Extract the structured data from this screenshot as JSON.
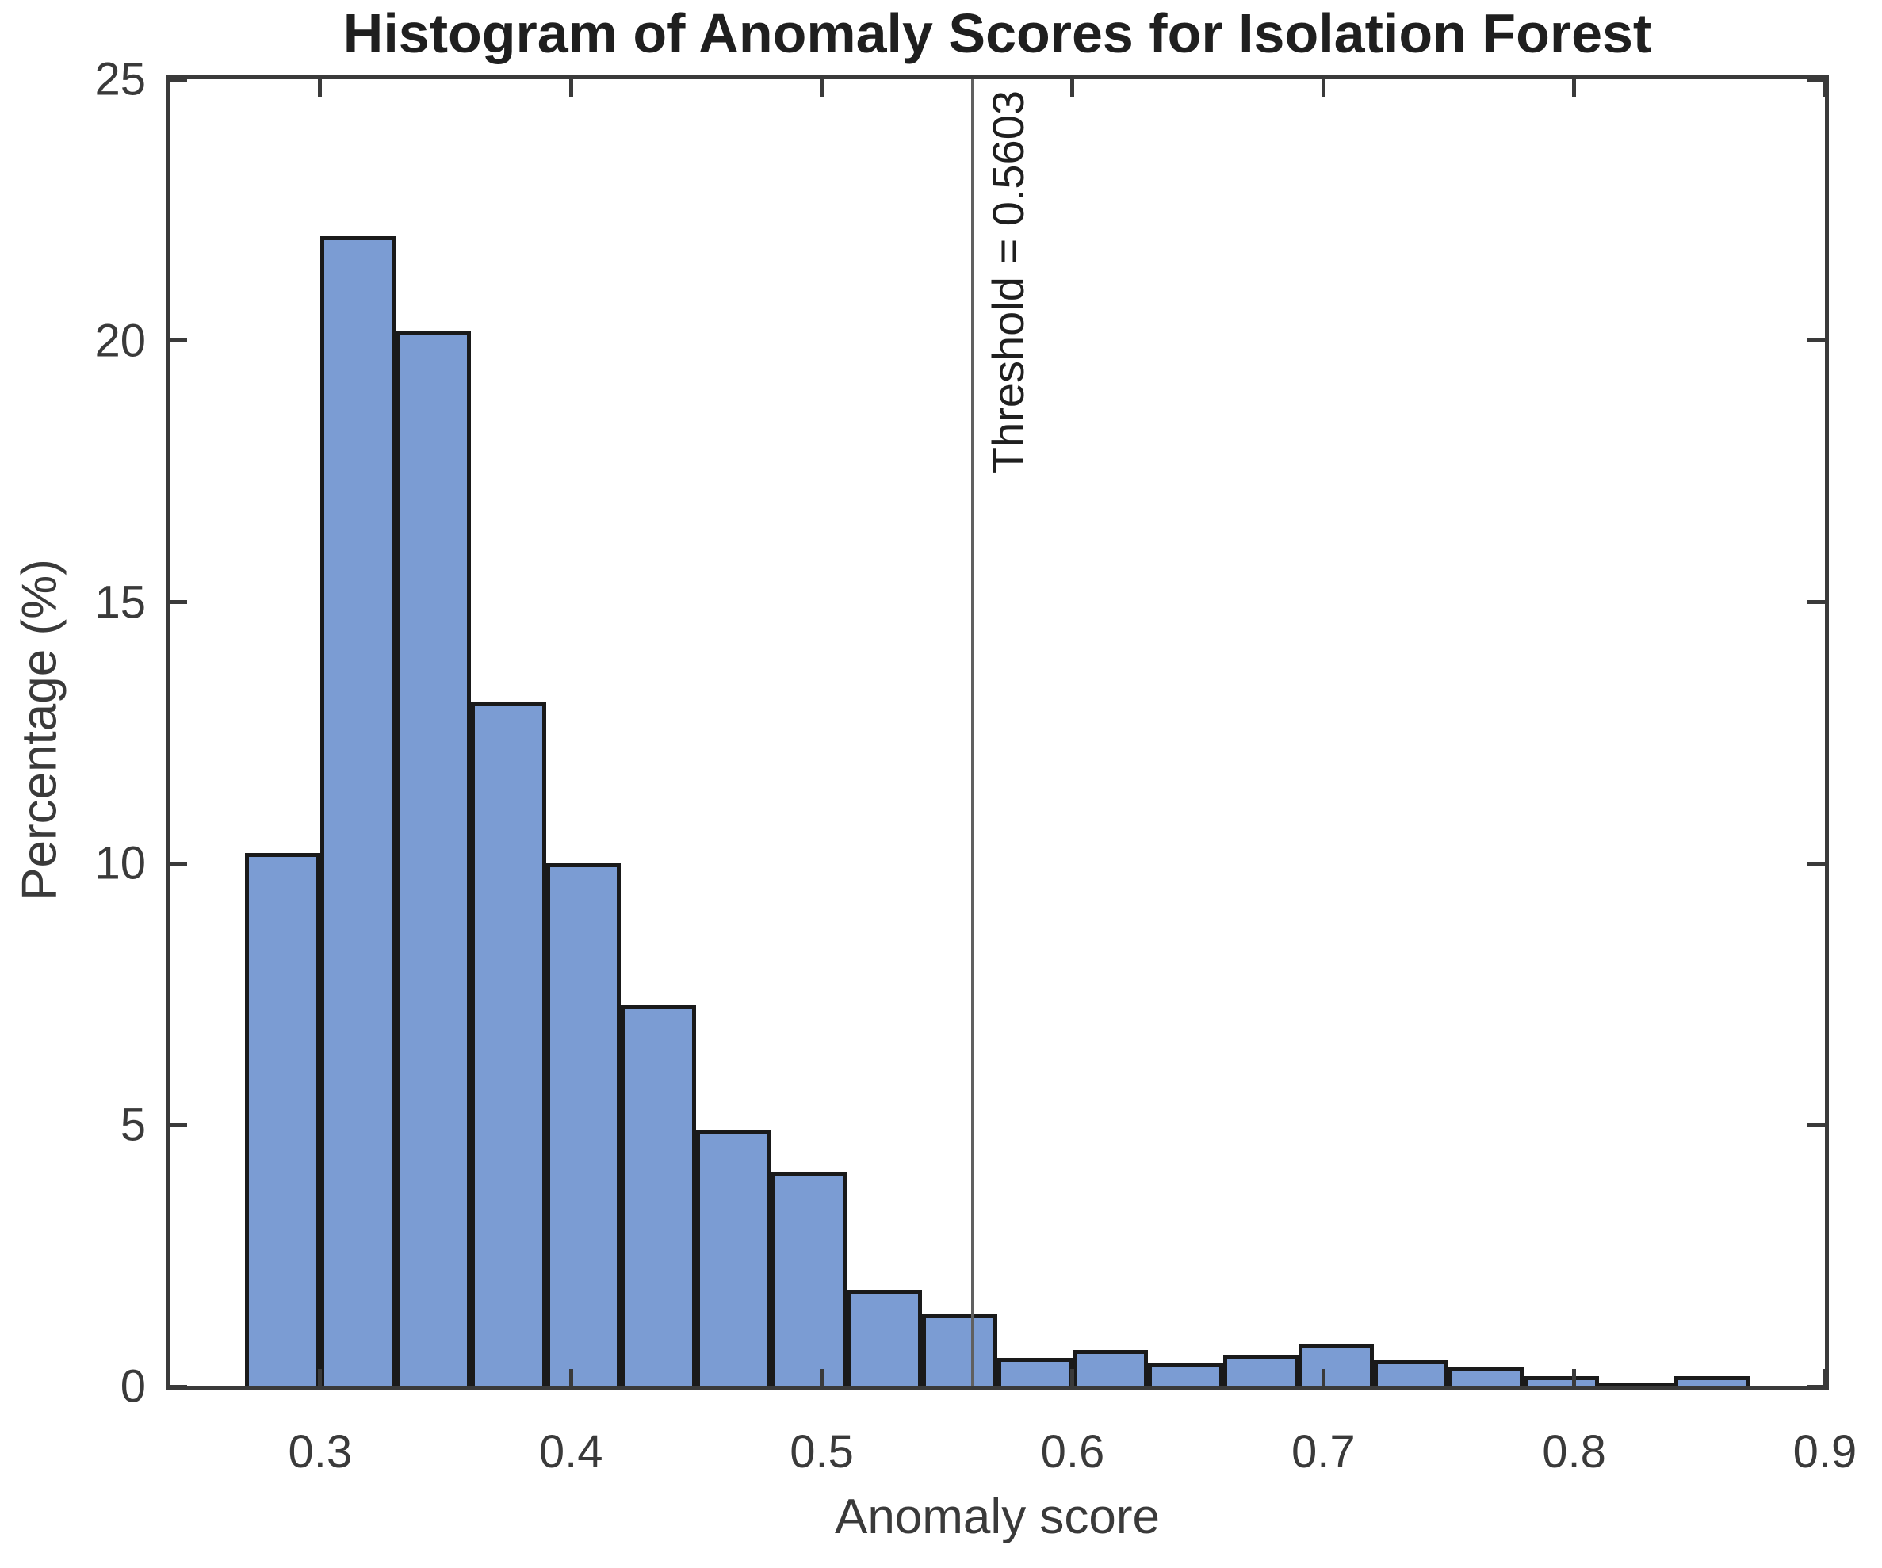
{
  "title": "Histogram of Anomaly Scores for Isolation Forest",
  "threshold_label": "Threshold = 0.5603",
  "chart_data": {
    "type": "bar",
    "subtype": "histogram",
    "title": "Histogram of Anomaly Scores for Isolation Forest",
    "xlabel": "Anomaly score",
    "ylabel": "Percentage (%)",
    "xlim": [
      0.24,
      0.9
    ],
    "ylim": [
      0,
      25
    ],
    "x_ticks": [
      0.3,
      0.4,
      0.5,
      0.6,
      0.7,
      0.8,
      0.9
    ],
    "x_tick_labels": [
      "0.3",
      "0.4",
      "0.5",
      "0.6",
      "0.7",
      "0.8",
      "0.9"
    ],
    "y_ticks": [
      0,
      5,
      10,
      15,
      20,
      25
    ],
    "y_tick_labels": [
      "0",
      "5",
      "10",
      "15",
      "20",
      "25"
    ],
    "bin_width": 0.03,
    "bin_edges": [
      0.27,
      0.3,
      0.33,
      0.36,
      0.39,
      0.42,
      0.45,
      0.48,
      0.51,
      0.54,
      0.57,
      0.6,
      0.63,
      0.66,
      0.69,
      0.72,
      0.75,
      0.78,
      0.81,
      0.84,
      0.87
    ],
    "values": [
      10.2,
      22.0,
      20.2,
      13.1,
      10.0,
      7.3,
      4.9,
      4.1,
      1.85,
      1.4,
      0.55,
      0.7,
      0.45,
      0.6,
      0.8,
      0.5,
      0.38,
      0.2,
      0.07,
      0.2
    ],
    "threshold": 0.5603,
    "threshold_label": "Threshold = 0.5603",
    "grid": false,
    "legend": "none",
    "bar_color": "#7b9cd3",
    "bar_edge_color": "#1a1a1a",
    "axis_color": "#3a3a3a",
    "threshold_line_color": "#606060",
    "title_color": "#1f1f1f",
    "background_color": "#ffffff"
  }
}
